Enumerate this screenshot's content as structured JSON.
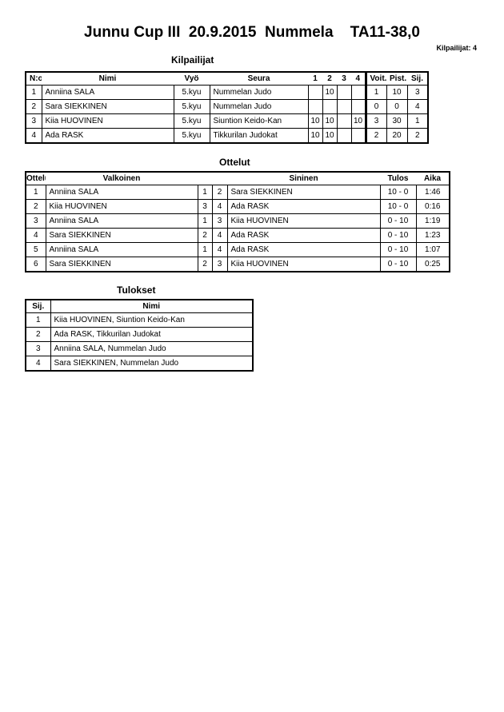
{
  "title": "Junnu Cup III  20.9.2015  Nummela    TA11-38,0",
  "competitor_count": "Kilpailijat: 4",
  "competitors": {
    "heading": "Kilpailijat",
    "headers": [
      "N:o",
      "Nimi",
      "Vyö",
      "Seura",
      "1",
      "2",
      "3",
      "4",
      "Voit.",
      "Pist.",
      "Sij."
    ],
    "rows": [
      [
        "1",
        "Anniina SALA",
        "5.kyu",
        "Nummelan Judo",
        "",
        "10",
        "",
        "",
        "1",
        "10",
        "3"
      ],
      [
        "2",
        "Sara SIEKKINEN",
        "5.kyu",
        "Nummelan Judo",
        "",
        "",
        "",
        "",
        "0",
        "0",
        "4"
      ],
      [
        "3",
        "Kiia HUOVINEN",
        "5.kyu",
        "Siuntion Keido-Kan",
        "10",
        "10",
        "",
        "10",
        "3",
        "30",
        "1"
      ],
      [
        "4",
        "Ada RASK",
        "5.kyu",
        "Tikkurilan Judokat",
        "10",
        "10",
        "",
        "",
        "2",
        "20",
        "2"
      ]
    ]
  },
  "matches": {
    "heading": "Ottelut",
    "headers": [
      "Ottelu",
      "Valkoinen",
      "Sininen",
      "Tulos",
      "Aika"
    ],
    "rows": [
      [
        "1",
        "Anniina SALA",
        "1",
        "2",
        "Sara SIEKKINEN",
        "10 - 0",
        "1:46"
      ],
      [
        "2",
        "Kiia HUOVINEN",
        "3",
        "4",
        "Ada RASK",
        "10 - 0",
        "0:16"
      ],
      [
        "3",
        "Anniina SALA",
        "1",
        "3",
        "Kiia HUOVINEN",
        "0 - 10",
        "1:19"
      ],
      [
        "4",
        "Sara SIEKKINEN",
        "2",
        "4",
        "Ada RASK",
        "0 - 10",
        "1:23"
      ],
      [
        "5",
        "Anniina SALA",
        "1",
        "4",
        "Ada RASK",
        "0 - 10",
        "1:07"
      ],
      [
        "6",
        "Sara SIEKKINEN",
        "2",
        "3",
        "Kiia HUOVINEN",
        "0 - 10",
        "0:25"
      ]
    ]
  },
  "results": {
    "heading": "Tulokset",
    "headers": [
      "Sij.",
      "Nimi"
    ],
    "rows": [
      [
        "1",
        "Kiia HUOVINEN, Siuntion Keido-Kan"
      ],
      [
        "2",
        "Ada RASK, Tikkurilan Judokat"
      ],
      [
        "3",
        "Anniina SALA, Nummelan Judo"
      ],
      [
        "4",
        "Sara SIEKKINEN, Nummelan Judo"
      ]
    ]
  }
}
